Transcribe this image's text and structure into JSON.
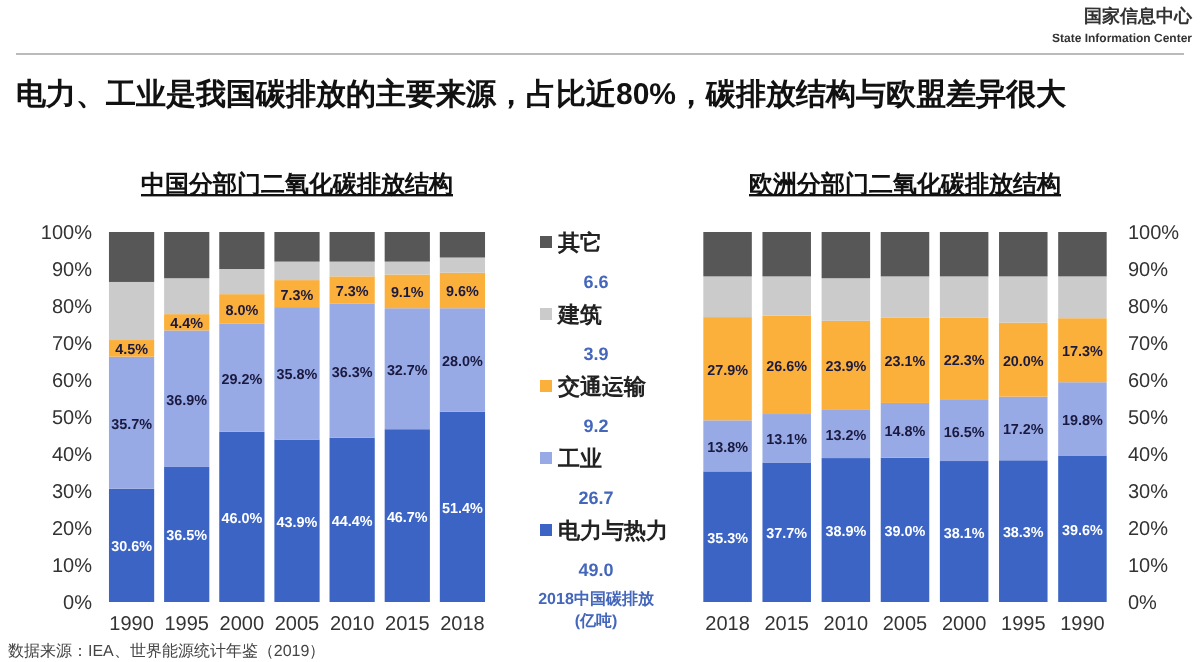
{
  "chart_data": [
    {
      "type": "bar",
      "stacked": true,
      "title": "中国分部门二氧化碳排放结构",
      "categories": [
        "1990",
        "1995",
        "2000",
        "2005",
        "2010",
        "2015",
        "2018"
      ],
      "ylim": [
        0,
        100
      ],
      "yticks": [
        {
          "value": 0,
          "label": "0%"
        },
        {
          "value": 10,
          "label": "10%"
        },
        {
          "value": 20,
          "label": "20%"
        },
        {
          "value": 30,
          "label": "30%"
        },
        {
          "value": 40,
          "label": "40%"
        },
        {
          "value": 50,
          "label": "50%"
        },
        {
          "value": 60,
          "label": "60%"
        },
        {
          "value": 70,
          "label": "70%"
        },
        {
          "value": 80,
          "label": "80%"
        },
        {
          "value": 90,
          "label": "90%"
        },
        {
          "value": 100,
          "label": "100%"
        }
      ],
      "legend": "right",
      "grid": false,
      "series": [
        {
          "name": "电力与热力",
          "color": "#3b64c4",
          "values": [
            30.6,
            36.5,
            46.0,
            43.9,
            44.4,
            46.7,
            51.4
          ],
          "value_labels": [
            "30.6%",
            "36.5%",
            "46.0%",
            "43.9%",
            "44.4%",
            "46.7%",
            "51.4%"
          ]
        },
        {
          "name": "工业",
          "color": "#98aae6",
          "values": [
            35.7,
            36.9,
            29.2,
            35.8,
            36.3,
            32.7,
            28.0
          ],
          "value_labels": [
            "35.7%",
            "36.9%",
            "29.2%",
            "35.8%",
            "36.3%",
            "32.7%",
            "28.0%"
          ]
        },
        {
          "name": "交通运输",
          "color": "#fbb03b",
          "values": [
            4.5,
            4.4,
            8.0,
            7.3,
            7.3,
            9.1,
            9.6
          ],
          "value_labels": [
            "4.5%",
            "4.4%",
            "8.0%",
            "7.3%",
            "7.3%",
            "9.1%",
            "9.6%"
          ]
        },
        {
          "name": "建筑",
          "color": "#cbcbcb",
          "values": [
            15.7,
            9.7,
            6.8,
            5.0,
            4.0,
            3.5,
            4.1
          ]
        },
        {
          "name": "其它",
          "color": "#575757",
          "values": [
            13.5,
            12.5,
            10.0,
            8.0,
            8.0,
            8.0,
            6.9
          ]
        }
      ],
      "annotations": [
        "国家信息中心",
        "State Information Center",
        "电力、工业是我国碳排放的主要来源，占比近80%，碳排放结构与欧盟差异很大",
        "数据来源：IEA、世界能源统计年鉴（2019）",
        "6.6",
        "3.9",
        "9.2",
        "26.7",
        "49.0",
        "2018中国碳排放",
        "(亿吨)"
      ]
    },
    {
      "type": "bar",
      "stacked": true,
      "title": "欧洲分部门二氧化碳排放结构",
      "categories": [
        "2018",
        "2015",
        "2010",
        "2005",
        "2000",
        "1995",
        "1990"
      ],
      "ylim": [
        0,
        100
      ],
      "yticks": [
        {
          "value": 0,
          "label": "0%"
        },
        {
          "value": 10,
          "label": "10%"
        },
        {
          "value": 20,
          "label": "20%"
        },
        {
          "value": 30,
          "label": "30%"
        },
        {
          "value": 40,
          "label": "40%"
        },
        {
          "value": 50,
          "label": "50%"
        },
        {
          "value": 60,
          "label": "60%"
        },
        {
          "value": 70,
          "label": "70%"
        },
        {
          "value": 80,
          "label": "80%"
        },
        {
          "value": 90,
          "label": "90%"
        },
        {
          "value": 100,
          "label": "100%"
        }
      ],
      "grid": false,
      "series": [
        {
          "color": "#3b64c4",
          "values": [
            35.3,
            37.7,
            38.9,
            39.0,
            38.1,
            38.3,
            39.6
          ],
          "value_labels": [
            "35.3%",
            "37.7%",
            "38.9%",
            "39.0%",
            "38.1%",
            "38.3%",
            "39.6%"
          ]
        },
        {
          "color": "#98aae6",
          "values": [
            13.8,
            13.1,
            13.2,
            14.8,
            16.5,
            17.2,
            19.8
          ],
          "value_labels": [
            "13.8%",
            "13.1%",
            "13.2%",
            "14.8%",
            "16.5%",
            "17.2%",
            "19.8%"
          ]
        },
        {
          "color": "#fbb03b",
          "values": [
            27.9,
            26.6,
            23.9,
            23.1,
            22.3,
            20.0,
            17.3
          ],
          "value_labels": [
            "27.9%",
            "26.6%",
            "23.9%",
            "23.1%",
            "22.3%",
            "20.0%",
            "17.3%"
          ]
        },
        {
          "color": "#cbcbcb",
          "values": [
            11.0,
            10.6,
            11.5,
            11.1,
            11.1,
            12.5,
            11.3
          ]
        },
        {
          "color": "#575757",
          "values": [
            12.0,
            12.0,
            12.5,
            12.0,
            12.0,
            12.0,
            12.0
          ]
        }
      ]
    }
  ]
}
